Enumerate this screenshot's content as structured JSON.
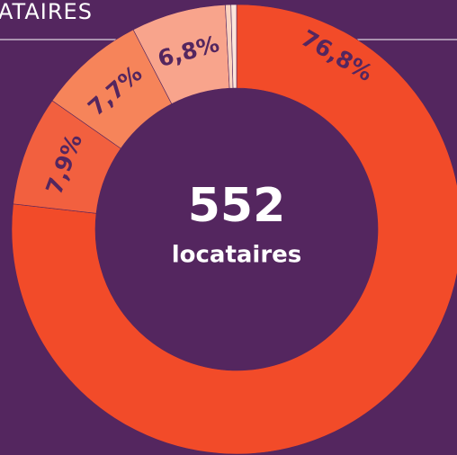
{
  "chart_data": {
    "type": "donut",
    "title": "ATAIRES",
    "categories": [
      null,
      null,
      null,
      null,
      null,
      null
    ],
    "values": [
      76.8,
      7.9,
      7.7,
      6.8,
      0.4,
      0.4
    ],
    "value_labels": [
      "76,8%",
      "7,9%",
      "7,7%",
      "6,8%",
      null,
      null
    ],
    "colors": [
      "#f24b29",
      "#f2603f",
      "#f6845a",
      "#f8a48c",
      "#fcd3c0",
      "#fde6dc"
    ],
    "center": {
      "value": "552",
      "label": "locataires"
    }
  }
}
